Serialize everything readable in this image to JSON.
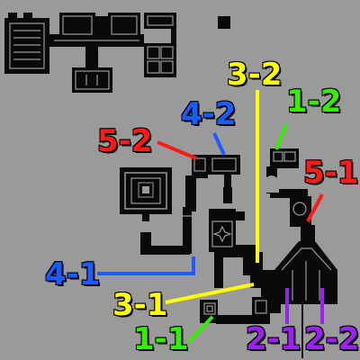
{
  "colors": {
    "background": "#9a9a9a",
    "walls": "#0a0a0a",
    "floor": "#9a9a9a",
    "red": "#ff1a1a",
    "blue": "#1a5cff",
    "yellow": "#ffff00",
    "green": "#33ee00",
    "purple": "#9a22ee"
  },
  "labels": [
    {
      "id": "5-2",
      "text": "5-2",
      "color": "red"
    },
    {
      "id": "4-2",
      "text": "4-2",
      "color": "blue"
    },
    {
      "id": "3-2",
      "text": "3-2",
      "color": "yellow"
    },
    {
      "id": "1-2",
      "text": "1-2",
      "color": "green"
    },
    {
      "id": "5-1",
      "text": "5-1",
      "color": "red"
    },
    {
      "id": "4-1",
      "text": "4-1",
      "color": "blue"
    },
    {
      "id": "3-1",
      "text": "3-1",
      "color": "yellow"
    },
    {
      "id": "1-1",
      "text": "1-1",
      "color": "green"
    },
    {
      "id": "2-1",
      "text": "2-1",
      "color": "purple"
    },
    {
      "id": "2-2",
      "text": "2-2",
      "color": "purple"
    }
  ]
}
